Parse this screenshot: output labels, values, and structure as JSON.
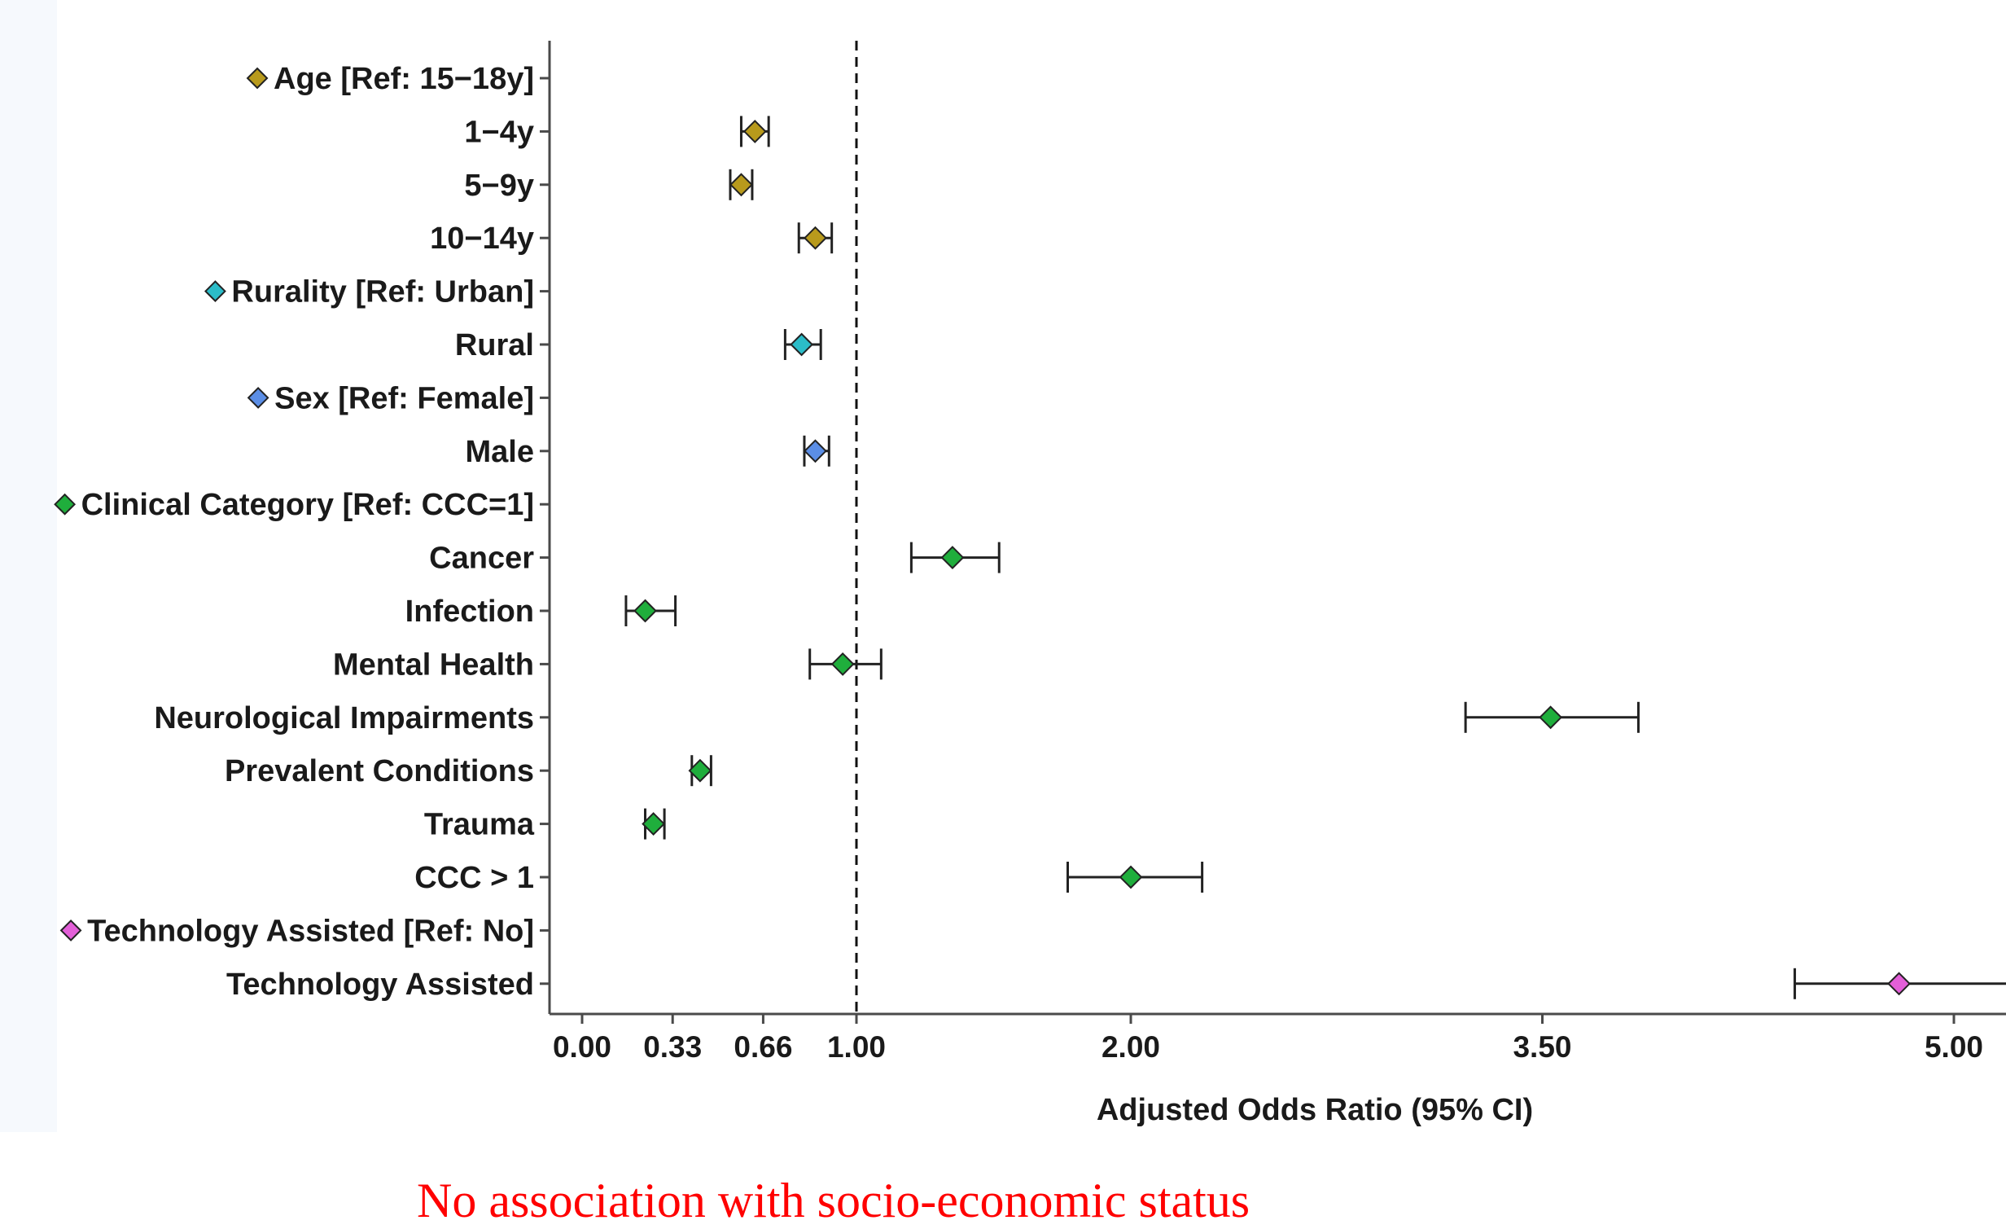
{
  "chart_data": {
    "type": "forest",
    "xlabel": "Adjusted Odds Ratio (95% CI)",
    "x_ticks": [
      0.0,
      0.33,
      0.66,
      1.0,
      2.0,
      3.5,
      5.0
    ],
    "x_tick_labels": [
      "0.00",
      "0.33",
      "0.66",
      "1.00",
      "2.00",
      "3.50",
      "5.00"
    ],
    "xlim": [
      -0.1,
      5.2
    ],
    "reference_line": 1.0,
    "colors": {
      "Age": "#b89a1c",
      "Rurality": "#2bbcc8",
      "Sex": "#5b8ee6",
      "Clinical Category": "#1fae3c",
      "Technology Assisted": "#e35fd8"
    },
    "rows": [
      {
        "label": "Age [Ref: 15−18y]",
        "group": "Age",
        "header": true
      },
      {
        "label": "1−4y",
        "group": "Age",
        "estimate": 0.63,
        "lower": 0.58,
        "upper": 0.68
      },
      {
        "label": "5−9y",
        "group": "Age",
        "estimate": 0.58,
        "lower": 0.54,
        "upper": 0.62
      },
      {
        "label": "10−14y",
        "group": "Age",
        "estimate": 0.85,
        "lower": 0.79,
        "upper": 0.91
      },
      {
        "label": "Rurality [Ref: Urban]",
        "group": "Rurality",
        "header": true
      },
      {
        "label": "Rural",
        "group": "Rurality",
        "estimate": 0.8,
        "lower": 0.74,
        "upper": 0.87
      },
      {
        "label": "Sex [Ref: Female]",
        "group": "Sex",
        "header": true
      },
      {
        "label": "Male",
        "group": "Sex",
        "estimate": 0.85,
        "lower": 0.81,
        "upper": 0.9
      },
      {
        "label": "Clinical Category [Ref: CCC=1]",
        "group": "Clinical Category",
        "header": true
      },
      {
        "label": "Cancer",
        "group": "Clinical Category",
        "estimate": 1.35,
        "lower": 1.2,
        "upper": 1.52
      },
      {
        "label": "Infection",
        "group": "Clinical Category",
        "estimate": 0.23,
        "lower": 0.16,
        "upper": 0.34
      },
      {
        "label": "Mental Health",
        "group": "Clinical Category",
        "estimate": 0.95,
        "lower": 0.83,
        "upper": 1.09
      },
      {
        "label": "Neurological Impairments",
        "group": "Clinical Category",
        "estimate": 3.53,
        "lower": 3.22,
        "upper": 3.85
      },
      {
        "label": "Prevalent Conditions",
        "group": "Clinical Category",
        "estimate": 0.43,
        "lower": 0.4,
        "upper": 0.47
      },
      {
        "label": "Trauma",
        "group": "Clinical Category",
        "estimate": 0.26,
        "lower": 0.23,
        "upper": 0.3
      },
      {
        "label": "CCC > 1",
        "group": "Clinical Category",
        "estimate": 2.0,
        "lower": 1.77,
        "upper": 2.26
      },
      {
        "label": "Technology Assisted [Ref: No]",
        "group": "Technology Assisted",
        "header": true
      },
      {
        "label": "Technology Assisted",
        "group": "Technology Assisted",
        "estimate": 4.8,
        "lower": 4.42,
        "upper": 5.2
      }
    ]
  },
  "footnote": "No association with socio-economic status"
}
